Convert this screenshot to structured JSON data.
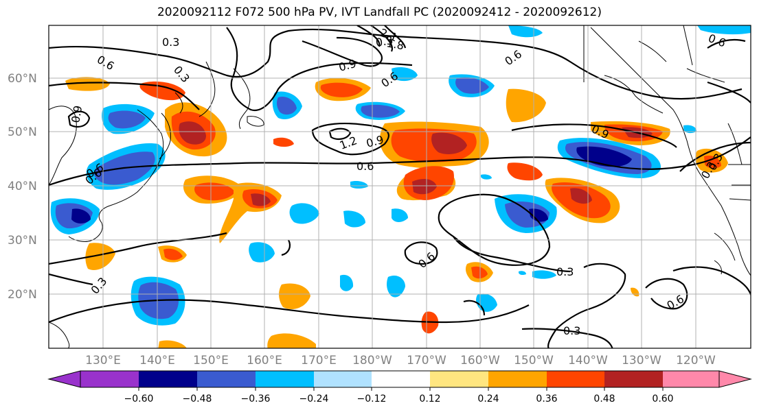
{
  "title": "2020092112 F072 500 hPa PV, IVT Landfall PC (2020092412 - 2020092612)",
  "lat_labels": [
    "60°N",
    "50°N",
    "40°N",
    "30°N",
    "20°N"
  ],
  "lon_labels": [
    "130°E",
    "140°E",
    "150°E",
    "160°E",
    "170°E",
    "180°W",
    "170°W",
    "160°W",
    "150°W",
    "140°W",
    "130°W",
    "120°W"
  ],
  "contour_labels": [
    "0.3",
    "0.6",
    "0.3",
    "0.9",
    "0.9",
    "1.2",
    "0.9",
    "0.6",
    "0.6",
    "0.6",
    "0.9",
    "0.6",
    "0.6",
    "0.3",
    "0.3",
    "0.3",
    "0.6",
    "0.3",
    "0.6",
    "0.3",
    "2.1",
    "1.8",
    "0.6",
    "0.3"
  ],
  "colorbar": {
    "ticks": [
      "−0.60",
      "−0.48",
      "−0.36",
      "−0.24",
      "−0.12",
      "0.12",
      "0.24",
      "0.36",
      "0.48",
      "0.60"
    ],
    "colors": [
      "#9932cc",
      "#00008b",
      "#3a5bd0",
      "#00bfff",
      "#b0e2ff",
      "#ffffff",
      "#ffe680",
      "#ffa500",
      "#ff4500",
      "#b22222",
      "#ff88aa"
    ]
  },
  "colors": {
    "neg_strong": "#00008b",
    "neg_mid": "#3a5bd0",
    "neg_light": "#00bfff",
    "pos_light": "#ffa500",
    "pos_mid": "#ff4500",
    "pos_strong": "#b22222",
    "pos_pale": "#ffe680"
  }
}
